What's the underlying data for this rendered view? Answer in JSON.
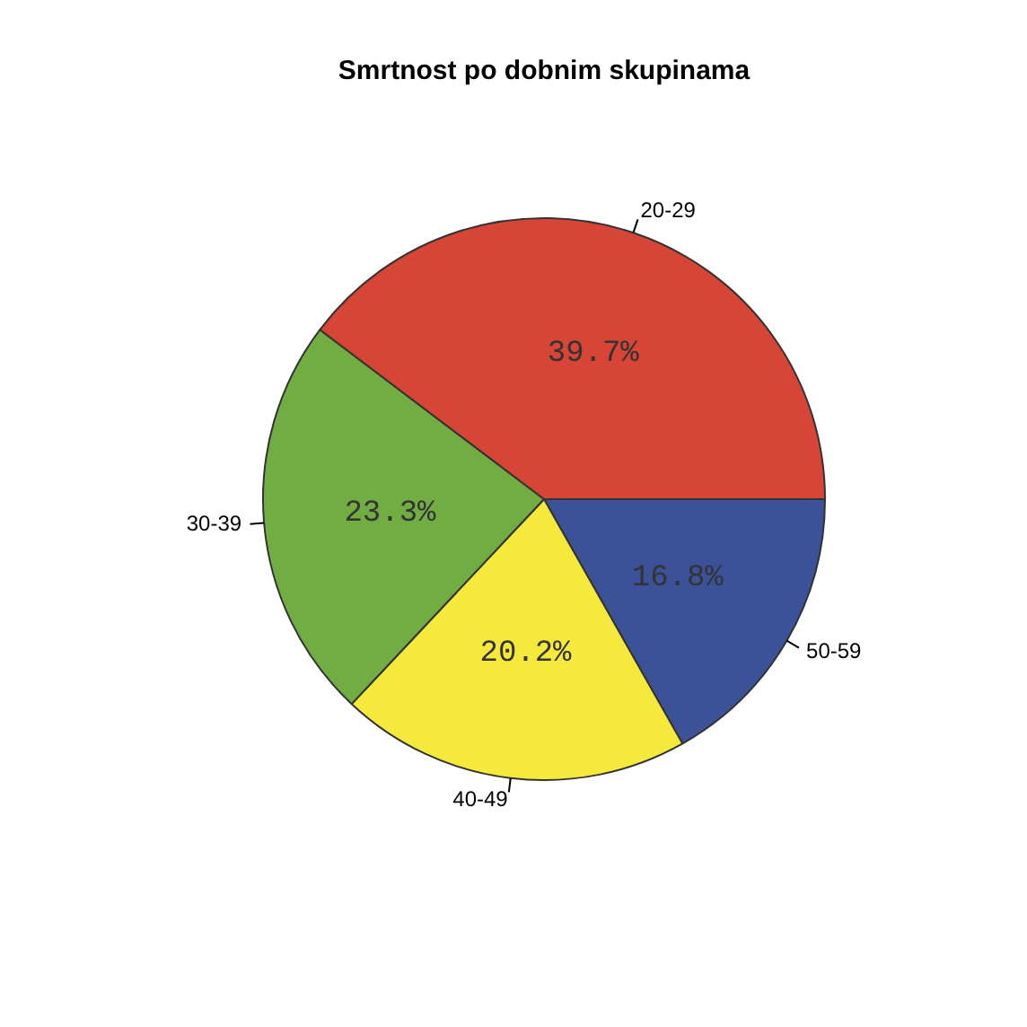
{
  "chart_data": {
    "type": "pie",
    "title": "Smrtnost po dobnim skupinama",
    "categories": [
      "20-29",
      "30-39",
      "40-49",
      "50-59"
    ],
    "values": [
      39.7,
      23.3,
      20.2,
      16.8
    ],
    "value_labels": [
      "39.7%",
      "23.3%",
      "20.2%",
      "16.8%"
    ],
    "colors": [
      "#d64535",
      "#72ad44",
      "#f5ea3c",
      "#3c5298"
    ],
    "legend": false
  }
}
